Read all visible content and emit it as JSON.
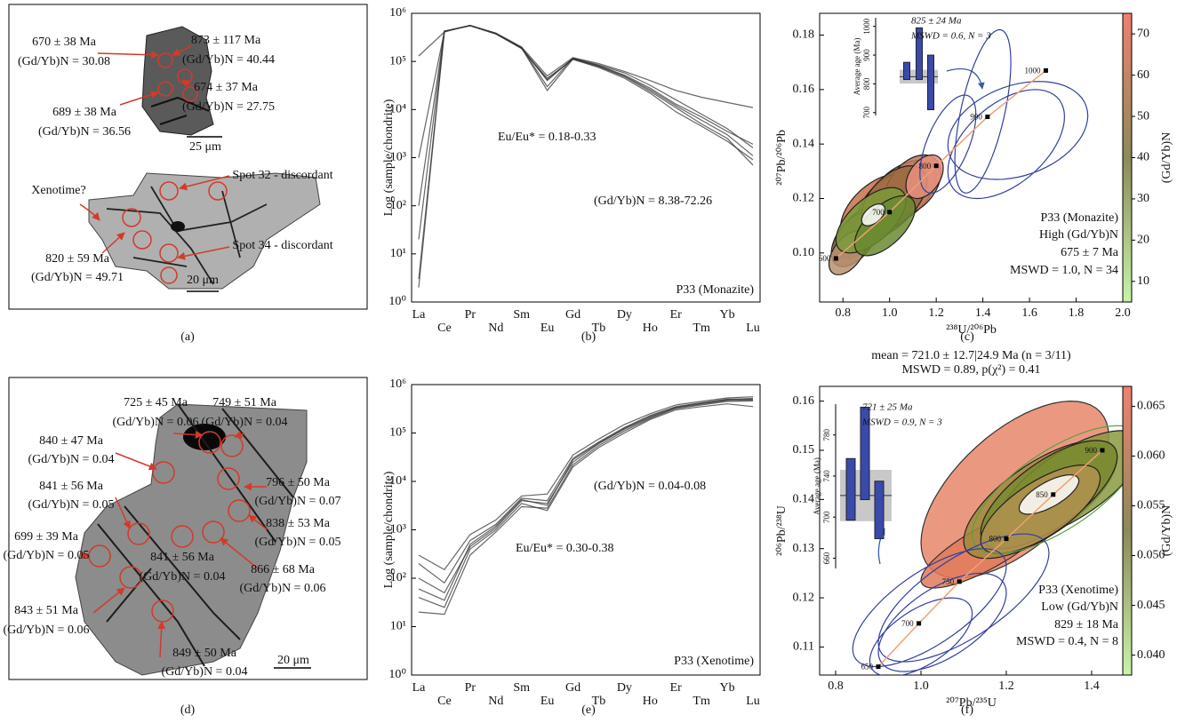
{
  "captions": [
    "(a)",
    "(b)",
    "(c)",
    "(d)",
    "(e)",
    "(f)"
  ],
  "images": [
    {
      "labels": [
        "670 ± 38 Ma",
        "(Gd/Yb)N = 30.08",
        "873 ± 117 Ma",
        "(Gd/Yb)N = 40.44",
        "674 ± 37 Ma",
        "(Gd/Yb)N = 27.75",
        "689 ± 38 Ma",
        "(Gd/Yb)N = 36.56",
        "25 μm",
        "Xenotime?",
        "Spot 32 - discordant",
        "820 ± 59 Ma",
        "(Gd/Yb)N = 49.71",
        "Spot 34 - discordant",
        "20 μm"
      ]
    },
    {
      "labels": [
        "725 ± 45 Ma",
        "(Gd/Yb)N = 0.06",
        "749 ± 51 Ma",
        "(Gd/Yb)N = 0.04",
        "840 ± 47 Ma",
        "(Gd/Yb)N = 0.04",
        "841 ± 56 Ma",
        "(Gd/Yb)N = 0.05",
        "796 ± 50 Ma",
        "(Gd/Yb)N = 0.07",
        "838 ± 53 Ma",
        "(Gd/Yb)N = 0.05",
        "699 ± 39 Ma",
        "(Gd/Yb)N = 0.05",
        "841 ± 56 Ma",
        "(Gd/Yb)N = 0.04",
        "866 ± 68 Ma",
        "(Gd/Yb)N = 0.06",
        "843 ± 51 Ma",
        "(Gd/Yb)N = 0.06",
        "849 ± 50 Ma",
        "(Gd/Yb)N = 0.04",
        "20 μm"
      ]
    }
  ],
  "chart_data": [
    {
      "type": "line",
      "log": true,
      "color": "#333333",
      "ylabel": "Log (sample/chondrite)",
      "categories": [
        "La",
        "Ce",
        "Pr",
        "Nd",
        "Sm",
        "Eu",
        "Gd",
        "Tb",
        "Dy",
        "Ho",
        "Er",
        "Tm",
        "Yb",
        "Lu"
      ],
      "ylim": [
        1,
        1000000
      ],
      "yticks": [
        {
          "value": 1,
          "label": "10⁰"
        },
        {
          "value": 10,
          "label": "10¹"
        },
        {
          "value": 100,
          "label": "10²"
        },
        {
          "value": 1000,
          "label": "10³"
        },
        {
          "value": 10000,
          "label": "10⁴"
        },
        {
          "value": 100000,
          "label": "10⁵"
        },
        {
          "value": 1000000,
          "label": "10⁶"
        }
      ],
      "annotations": [
        "Eu/Eu* = 0.18-0.33",
        "(Gd/Yb)N = 8.38-72.26",
        "P33 (Monazite)"
      ],
      "series": [
        {
          "values": [
            3,
            420000,
            560000,
            380000,
            190000,
            40000,
            115000,
            80000,
            50000,
            26000,
            12000,
            6000,
            3000,
            1100
          ]
        },
        {
          "values": [
            20,
            430000,
            550000,
            370000,
            185000,
            45000,
            110000,
            75000,
            45000,
            22000,
            9000,
            4500,
            2200,
            900
          ]
        },
        {
          "values": [
            130000,
            410000,
            560000,
            390000,
            200000,
            50000,
            120000,
            90000,
            62000,
            40000,
            25000,
            18000,
            14000,
            11000
          ]
        },
        {
          "values": [
            1000,
            420000,
            555000,
            385000,
            195000,
            30000,
            118000,
            85000,
            58000,
            32000,
            16000,
            8000,
            4000,
            1600
          ]
        },
        {
          "values": [
            100,
            425000,
            560000,
            380000,
            190000,
            25000,
            112000,
            78000,
            48000,
            24000,
            11000,
            5000,
            2500,
            700
          ]
        },
        {
          "values": [
            2,
            420000,
            560000,
            380000,
            190000,
            42000,
            115000,
            82000,
            52000,
            28000,
            13000,
            7000,
            3500,
            1900
          ]
        }
      ]
    },
    {
      "type": "concordia",
      "xlabel": "²³⁸U/²⁰⁶Pb",
      "ylabel": "²⁰⁷Pb/²⁰⁶Pb",
      "xlim": [
        0.7,
        2.0
      ],
      "ylim": [
        0.082,
        0.188
      ],
      "xticks": [
        0.8,
        {
          "value": 1.0,
          "label": "1.0"
        },
        1.2,
        1.4,
        1.6,
        1.8,
        {
          "value": 2.0,
          "label": "2.0"
        }
      ],
      "yticks": [
        {
          "value": 0.1,
          "label": "0.10"
        },
        0.12,
        0.14,
        0.16,
        0.18
      ],
      "annotations": [
        "P33 (Monazite)",
        "High (Gd/Yb)N",
        "675 ± 7 Ma",
        "MSWD = 1.0, N = 34"
      ],
      "concordia": {
        "color": "#f0a070",
        "ages": [
          600,
          700,
          800,
          900,
          1000
        ],
        "x": [
          0.77,
          1.0,
          1.2,
          1.42,
          1.67
        ],
        "y": [
          0.098,
          0.115,
          0.132,
          0.15,
          0.167
        ]
      },
      "colorbar": {
        "label": "(Gd/Yb)N",
        "lim": [
          5,
          75
        ],
        "ticks": [
          10,
          20,
          30,
          40,
          50,
          60,
          70
        ],
        "colors": [
          "#c8f4a8",
          "#8c8a58",
          "#f08070"
        ]
      },
      "ellipses": [
        {
          "x": 0.95,
          "y": 0.116,
          "sx": 0.16,
          "sy": 0.013,
          "rho": 0.5,
          "fill": "#c8704a",
          "stroke": "#222"
        },
        {
          "x": 1.05,
          "y": 0.122,
          "sx": 0.15,
          "sy": 0.012,
          "rho": 0.5,
          "fill": "#e08a70",
          "stroke": "#222"
        },
        {
          "x": 1.0,
          "y": 0.118,
          "sx": 0.14,
          "sy": 0.012,
          "rho": 0.5,
          "fill": "#d9826a",
          "stroke": "#222"
        },
        {
          "x": 0.88,
          "y": 0.108,
          "sx": 0.12,
          "sy": 0.01,
          "rho": 0.6,
          "fill": "#a08050",
          "stroke": "#222"
        },
        {
          "x": 1.1,
          "y": 0.125,
          "sx": 0.12,
          "sy": 0.011,
          "rho": 0.4,
          "fill": "#b8785a",
          "stroke": "#222"
        },
        {
          "x": 0.85,
          "y": 0.105,
          "sx": 0.1,
          "sy": 0.01,
          "rho": 0.5,
          "fill": "#8a6a40",
          "stroke": "#222"
        },
        {
          "x": 1.02,
          "y": 0.12,
          "sx": 0.14,
          "sy": 0.012,
          "rho": 0.5,
          "fill": "#9a6a40",
          "stroke": "#222"
        },
        {
          "x": 1.15,
          "y": 0.128,
          "sx": 0.08,
          "sy": 0.008,
          "rho": 0.4,
          "fill": "#e89080",
          "stroke": "#222"
        },
        {
          "x": 0.82,
          "y": 0.1,
          "sx": 0.08,
          "sy": 0.008,
          "rho": 0.5,
          "fill": "#b89070",
          "stroke": "#222"
        },
        {
          "x": 0.92,
          "y": 0.112,
          "sx": 0.15,
          "sy": 0.012,
          "rho": 0.6,
          "fill": "#7a9a3a",
          "stroke": "#222"
        },
        {
          "x": 0.98,
          "y": 0.11,
          "sx": 0.13,
          "sy": 0.011,
          "rho": 0.6,
          "fill": "#6a8a30",
          "stroke": "#222"
        },
        {
          "x": 0.93,
          "y": 0.114,
          "sx": 0.05,
          "sy": 0.004,
          "rho": 0.5,
          "fill": "#ffffff",
          "stroke": "#222"
        },
        {
          "x": 1.5,
          "y": 0.14,
          "sx": 0.25,
          "sy": 0.02,
          "rho": 0.5,
          "fill": "none",
          "stroke": "#3040a0"
        },
        {
          "x": 1.4,
          "y": 0.152,
          "sx": 0.12,
          "sy": 0.03,
          "rho": 0.6,
          "fill": "none",
          "stroke": "#3040a0"
        },
        {
          "x": 1.55,
          "y": 0.145,
          "sx": 0.3,
          "sy": 0.018,
          "rho": 0.3,
          "fill": "none",
          "stroke": "#3040a0"
        },
        {
          "x": 1.25,
          "y": 0.14,
          "sx": 0.12,
          "sy": 0.018,
          "rho": 0.6,
          "fill": "none",
          "stroke": "#3040a0"
        }
      ],
      "inset": {
        "texts": [
          "825 ± 24 Ma",
          "MSWD = 0.6, N = 3"
        ],
        "ylabel": "Average age (Ma)",
        "ylim": [
          690,
          1030
        ],
        "yticks": [
          700,
          800,
          900,
          1000
        ],
        "mean": 825,
        "err": 24,
        "color": "#3a4aa8",
        "bars": [
          {
            "value": 845,
            "error": 30
          },
          {
            "value": 905,
            "error": 90
          },
          {
            "value": 805,
            "error": 95
          }
        ]
      }
    },
    {
      "type": "line",
      "log": true,
      "color": "#333333",
      "ylabel": "Log (sample/chondrite)",
      "categories": [
        "La",
        "Ce",
        "Pr",
        "Nd",
        "Sm",
        "Eu",
        "Gd",
        "Tb",
        "Dy",
        "Ho",
        "Er",
        "Tm",
        "Yb",
        "Lu"
      ],
      "ylim": [
        1,
        1000000
      ],
      "yticks": [
        {
          "value": 1,
          "label": "10⁰"
        },
        {
          "value": 10,
          "label": "10¹"
        },
        {
          "value": 100,
          "label": "10²"
        },
        {
          "value": 1000,
          "label": "10³"
        },
        {
          "value": 10000,
          "label": "10⁴"
        },
        {
          "value": 100000,
          "label": "10⁵"
        },
        {
          "value": 1000000,
          "label": "10⁶"
        }
      ],
      "annotations": [
        "(Gd/Yb)N = 0.04-0.08",
        "Eu/Eu* = 0.30-0.38",
        "P33 (Xenotime)"
      ],
      "series": [
        {
          "values": [
            300,
            150,
            800,
            1600,
            5000,
            5500,
            35000,
            75000,
            150000,
            250000,
            380000,
            450000,
            530000,
            560000
          ]
        },
        {
          "values": [
            200,
            80,
            600,
            1300,
            4500,
            4000,
            30000,
            65000,
            130000,
            230000,
            350000,
            420000,
            500000,
            500000
          ]
        },
        {
          "values": [
            100,
            50,
            450,
            1100,
            4000,
            3500,
            25000,
            60000,
            120000,
            210000,
            330000,
            400000,
            470000,
            480000
          ]
        },
        {
          "values": [
            40,
            25,
            400,
            1000,
            3500,
            2500,
            20000,
            50000,
            100000,
            190000,
            300000,
            350000,
            400000,
            350000
          ]
        },
        {
          "values": [
            20,
            18,
            300,
            900,
            3000,
            2800,
            22000,
            55000,
            110000,
            200000,
            320000,
            380000,
            450000,
            460000
          ]
        },
        {
          "values": [
            60,
            35,
            500,
            1200,
            4200,
            3200,
            28000,
            62000,
            125000,
            220000,
            340000,
            410000,
            490000,
            520000
          ]
        }
      ]
    },
    {
      "type": "concordia",
      "title": "mean = 721.0 ± 12.7|24.9 Ma (n = 3/11)",
      "subtitle": "MSWD = 0.89, p(χ²) = 0.41",
      "xlabel": "²⁰⁷Pb/²³⁵U",
      "ylabel": "²⁰⁶Pb/²³⁸U",
      "xlim": [
        0.7625,
        1.473
      ],
      "ylim": [
        0.1043,
        0.163
      ],
      "xticks": [
        0.8,
        {
          "value": 1.0,
          "label": "1.0"
        },
        1.2,
        1.4
      ],
      "yticks": [
        0.11,
        0.12,
        0.13,
        0.14,
        0.15,
        0.16
      ],
      "annotations": [
        "P33 (Xenotime)",
        "Low (Gd/Yb)N",
        "829 ± 18 Ma",
        "MSWD = 0.4, N = 8"
      ],
      "concordia": {
        "color": "#f0a070",
        "ages": [
          650,
          700,
          750,
          800,
          850,
          900
        ],
        "x": [
          0.9,
          0.995,
          1.09,
          1.2,
          1.31,
          1.425
        ],
        "y": [
          0.106,
          0.1148,
          0.1233,
          0.132,
          0.141,
          0.15
        ]
      },
      "colorbar": {
        "label": "(Gd/Yb)N",
        "lim": [
          0.038,
          0.067
        ],
        "ticks": [
          {
            "value": 0.04,
            "label": "0.040"
          },
          0.045,
          {
            "value": 0.05,
            "label": "0.050"
          },
          0.055,
          {
            "value": 0.06,
            "label": "0.060"
          },
          0.065
        ],
        "colors": [
          "#c8f4a8",
          "#8c8a58",
          "#f08070"
        ]
      },
      "ellipses": [
        {
          "x": 1.22,
          "y": 0.142,
          "sx": 0.22,
          "sy": 0.018,
          "rho": 0.6,
          "fill": "#e8866a",
          "stroke": "#333"
        },
        {
          "x": 1.15,
          "y": 0.13,
          "sx": 0.15,
          "sy": 0.008,
          "rho": 0.8,
          "fill": "#e07a5a",
          "stroke": "#333"
        },
        {
          "x": 1.28,
          "y": 0.14,
          "sx": 0.18,
          "sy": 0.012,
          "rho": 0.7,
          "fill": "#a08a40",
          "stroke": "#222"
        },
        {
          "x": 1.35,
          "y": 0.143,
          "sx": 0.17,
          "sy": 0.011,
          "rho": 0.7,
          "fill": "#8a9a40",
          "stroke": "#222"
        },
        {
          "x": 1.3,
          "y": 0.141,
          "sx": 0.16,
          "sy": 0.011,
          "rho": 0.7,
          "fill": "#7a8a30",
          "stroke": "#222"
        },
        {
          "x": 1.28,
          "y": 0.138,
          "sx": 0.14,
          "sy": 0.009,
          "rho": 0.7,
          "fill": "#b09050",
          "stroke": "#222"
        },
        {
          "x": 1.32,
          "y": 0.142,
          "sx": 0.2,
          "sy": 0.013,
          "rho": 0.7,
          "fill": "none",
          "stroke": "#5aa040"
        },
        {
          "x": 1.3,
          "y": 0.141,
          "sx": 0.07,
          "sy": 0.004,
          "rho": 0.7,
          "fill": "#ffffff",
          "stroke": "#222"
        },
        {
          "x": 1.05,
          "y": 0.115,
          "sx": 0.15,
          "sy": 0.01,
          "rho": 0.6,
          "fill": "none",
          "stroke": "#3040a0"
        },
        {
          "x": 1.02,
          "y": 0.118,
          "sx": 0.18,
          "sy": 0.012,
          "rho": 0.7,
          "fill": "none",
          "stroke": "#3040a0"
        },
        {
          "x": 1.1,
          "y": 0.12,
          "sx": 0.2,
          "sy": 0.013,
          "rho": 0.7,
          "fill": "none",
          "stroke": "#3040a0"
        },
        {
          "x": 1.0,
          "y": 0.112,
          "sx": 0.12,
          "sy": 0.008,
          "rho": 0.6,
          "fill": "none",
          "stroke": "#3040a0"
        }
      ],
      "inset": {
        "texts": [
          "721 ± 25 Ma",
          "MSWD = 0.9, N = 3"
        ],
        "ylabel": "Average age (Ma)",
        "ylim": [
          650,
          810
        ],
        "yticks": [
          660,
          700,
          740,
          780
        ],
        "mean": 721,
        "err": 25,
        "color": "#3a4aa8",
        "bars": [
          {
            "value": 727,
            "error": 30
          },
          {
            "value": 762,
            "error": 45
          },
          {
            "value": 707,
            "error": 28
          }
        ]
      }
    }
  ]
}
